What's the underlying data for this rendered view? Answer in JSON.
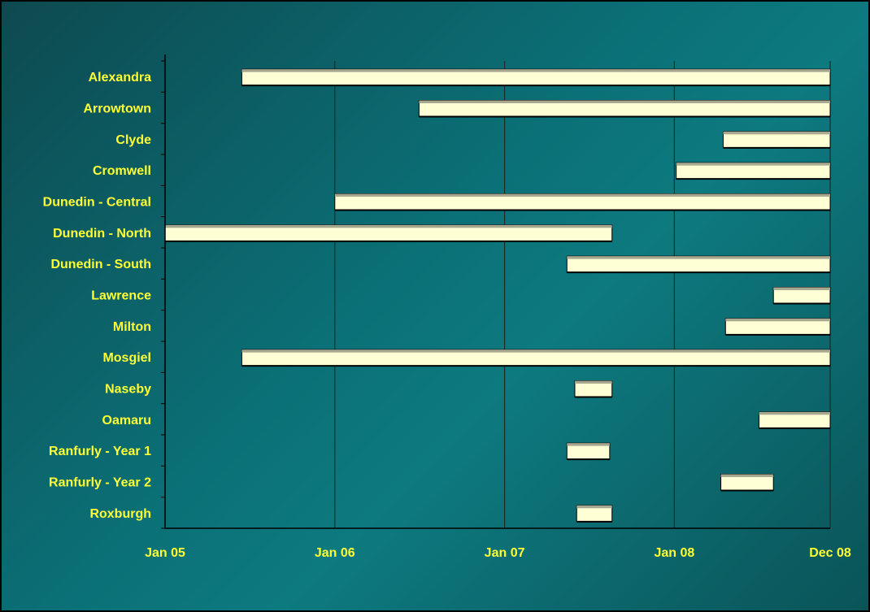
{
  "colors": {
    "label": "#ffff33",
    "bar_fill": "#ffffd6",
    "bar_top": "#a8a890",
    "bar_outline": "#000000",
    "axis": "#000000",
    "grid": "#1e2b2b"
  },
  "chart_data": {
    "type": "bar",
    "orientation": "horizontal",
    "subtype": "gantt",
    "title": "",
    "xlabel": "",
    "ylabel": "",
    "grid": "vertical",
    "x_axis": {
      "ticks": [
        "2005-01-01",
        "2006-01-01",
        "2007-01-01",
        "2008-01-01",
        "2008-12-01"
      ],
      "tick_labels": [
        "Jan 05",
        "Jan 06",
        "Jan 07",
        "Jan 08",
        "Dec 08"
      ],
      "range": [
        "2005-01-01",
        "2008-12-01"
      ]
    },
    "categories": [
      "Alexandra",
      "Arrowtown",
      "Clyde",
      "Cromwell",
      "Dunedin  - Central",
      "Dunedin  - North",
      "Dunedin  - South",
      "Lawrence",
      "Milton",
      "Mosgiel",
      "Naseby",
      "Oamaru",
      "Ranfurly  - Year  1",
      "Ranfurly  - Year  2",
      "Roxburgh"
    ],
    "series": [
      {
        "start": [
          "2005-06-15",
          "2006-07-01",
          "2008-04-15",
          "2008-01-05",
          "2006-01-01",
          "2005-01-01",
          "2007-05-15",
          "2008-08-01",
          "2008-04-20",
          "2005-06-15",
          "2007-06-01",
          "2008-07-01",
          "2007-05-15",
          "2008-04-10",
          "2007-06-05"
        ],
        "end": [
          "2008-12-01",
          "2008-12-01",
          "2008-12-01",
          "2008-12-01",
          "2008-12-01",
          "2007-08-20",
          "2008-12-01",
          "2008-12-01",
          "2008-12-01",
          "2008-12-01",
          "2007-08-20",
          "2008-12-01",
          "2007-08-15",
          "2008-08-01",
          "2007-08-20"
        ]
      }
    ]
  }
}
